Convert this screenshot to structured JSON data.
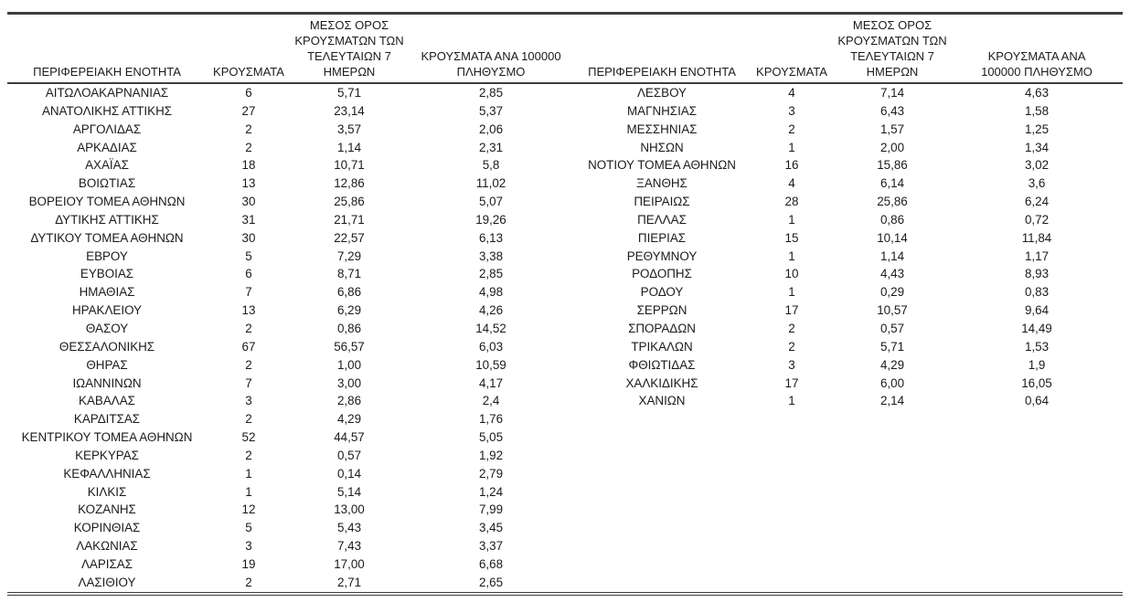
{
  "page": {
    "background": "#ffffff",
    "text_color": "#1b1b1b",
    "rule_color": "#3d3d3d"
  },
  "table": {
    "left": {
      "headers": {
        "region": "ΠΕΡΙΦΕΡΕΙΑΚΗ ΕΝΟΤΗΤΑ",
        "cases": "ΚΡΟΥΣΜΑΤΑ",
        "avg7": "ΜΕΣΟΣ ΟΡΟΣ\nΚΡΟΥΣΜΑΤΩΝ ΤΩΝ\nΤΕΛΕΥΤΑΙΩΝ 7\nΗΜΕΡΩΝ",
        "per100k": "ΚΡΟΥΣΜΑΤΑ ΑΝΑ 100000\nΠΛΗΘΥΣΜΟ"
      },
      "rows": [
        [
          "ΑΙΤΩΛΟΑΚΑΡΝΑΝΙΑΣ",
          "6",
          "5,71",
          "2,85"
        ],
        [
          "ΑΝΑΤΟΛΙΚΗΣ ΑΤΤΙΚΗΣ",
          "27",
          "23,14",
          "5,37"
        ],
        [
          "ΑΡΓΟΛΙΔΑΣ",
          "2",
          "3,57",
          "2,06"
        ],
        [
          "ΑΡΚΑΔΙΑΣ",
          "2",
          "1,14",
          "2,31"
        ],
        [
          "ΑΧΑΪΑΣ",
          "18",
          "10,71",
          "5,8"
        ],
        [
          "ΒΟΙΩΤΙΑΣ",
          "13",
          "12,86",
          "11,02"
        ],
        [
          "ΒΟΡΕΙΟΥ ΤΟΜΕΑ ΑΘΗΝΩΝ",
          "30",
          "25,86",
          "5,07"
        ],
        [
          "ΔΥΤΙΚΗΣ ΑΤΤΙΚΗΣ",
          "31",
          "21,71",
          "19,26"
        ],
        [
          "ΔΥΤΙΚΟΥ ΤΟΜΕΑ ΑΘΗΝΩΝ",
          "30",
          "22,57",
          "6,13"
        ],
        [
          "ΕΒΡΟΥ",
          "5",
          "7,29",
          "3,38"
        ],
        [
          "ΕΥΒΟΙΑΣ",
          "6",
          "8,71",
          "2,85"
        ],
        [
          "ΗΜΑΘΙΑΣ",
          "7",
          "6,86",
          "4,98"
        ],
        [
          "ΗΡΑΚΛΕΙΟΥ",
          "13",
          "6,29",
          "4,26"
        ],
        [
          "ΘΑΣΟΥ",
          "2",
          "0,86",
          "14,52"
        ],
        [
          "ΘΕΣΣΑΛΟΝΙΚΗΣ",
          "67",
          "56,57",
          "6,03"
        ],
        [
          "ΘΗΡΑΣ",
          "2",
          "1,00",
          "10,59"
        ],
        [
          "ΙΩΑΝΝΙΝΩΝ",
          "7",
          "3,00",
          "4,17"
        ],
        [
          "ΚΑΒΑΛΑΣ",
          "3",
          "2,86",
          "2,4"
        ],
        [
          "ΚΑΡΔΙΤΣΑΣ",
          "2",
          "4,29",
          "1,76"
        ],
        [
          "ΚΕΝΤΡΙΚΟΥ ΤΟΜΕΑ ΑΘΗΝΩΝ",
          "52",
          "44,57",
          "5,05"
        ],
        [
          "ΚΕΡΚΥΡΑΣ",
          "2",
          "0,57",
          "1,92"
        ],
        [
          "ΚΕΦΑΛΛΗΝΙΑΣ",
          "1",
          "0,14",
          "2,79"
        ],
        [
          "ΚΙΛΚΙΣ",
          "1",
          "5,14",
          "1,24"
        ],
        [
          "ΚΟΖΑΝΗΣ",
          "12",
          "13,00",
          "7,99"
        ],
        [
          "ΚΟΡΙΝΘΙΑΣ",
          "5",
          "5,43",
          "3,45"
        ],
        [
          "ΛΑΚΩΝΙΑΣ",
          "3",
          "7,43",
          "3,37"
        ],
        [
          "ΛΑΡΙΣΑΣ",
          "19",
          "17,00",
          "6,68"
        ],
        [
          "ΛΑΣΙΘΙΟΥ",
          "2",
          "2,71",
          "2,65"
        ]
      ]
    },
    "right": {
      "headers": {
        "region": "ΠΕΡΙΦΕΡΕΙΑΚΗ ΕΝΟΤΗΤΑ",
        "cases": "ΚΡΟΥΣΜΑΤΑ",
        "avg7": "ΜΕΣΟΣ ΟΡΟΣ\nΚΡΟΥΣΜΑΤΩΝ ΤΩΝ\nΤΕΛΕΥΤΑΙΩΝ 7\nΗΜΕΡΩΝ",
        "per100k": "ΚΡΟΥΣΜΑΤΑ ΑΝΑ\n100000 ΠΛΗΘΥΣΜΟ"
      },
      "rows": [
        [
          "ΛΕΣΒΟΥ",
          "4",
          "7,14",
          "4,63"
        ],
        [
          "ΜΑΓΝΗΣΙΑΣ",
          "3",
          "6,43",
          "1,58"
        ],
        [
          "ΜΕΣΣΗΝΙΑΣ",
          "2",
          "1,57",
          "1,25"
        ],
        [
          "ΝΗΣΩΝ",
          "1",
          "2,00",
          "1,34"
        ],
        [
          "ΝΟΤΙΟΥ ΤΟΜΕΑ ΑΘΗΝΩΝ",
          "16",
          "15,86",
          "3,02"
        ],
        [
          "ΞΑΝΘΗΣ",
          "4",
          "6,14",
          "3,6"
        ],
        [
          "ΠΕΙΡΑΙΩΣ",
          "28",
          "25,86",
          "6,24"
        ],
        [
          "ΠΕΛΛΑΣ",
          "1",
          "0,86",
          "0,72"
        ],
        [
          "ΠΙΕΡΙΑΣ",
          "15",
          "10,14",
          "11,84"
        ],
        [
          "ΡΕΘΥΜΝΟΥ",
          "1",
          "1,14",
          "1,17"
        ],
        [
          "ΡΟΔΟΠΗΣ",
          "10",
          "4,43",
          "8,93"
        ],
        [
          "ΡΟΔΟΥ",
          "1",
          "0,29",
          "0,83"
        ],
        [
          "ΣΕΡΡΩΝ",
          "17",
          "10,57",
          "9,64"
        ],
        [
          "ΣΠΟΡΑΔΩΝ",
          "2",
          "0,57",
          "14,49"
        ],
        [
          "ΤΡΙΚΑΛΩΝ",
          "2",
          "5,71",
          "1,53"
        ],
        [
          "ΦΘΙΩΤΙΔΑΣ",
          "3",
          "4,29",
          "1,9"
        ],
        [
          "ΧΑΛΚΙΔΙΚΗΣ",
          "17",
          "6,00",
          "16,05"
        ],
        [
          "ΧΑΝΙΩΝ",
          "1",
          "2,14",
          "0,64"
        ]
      ]
    }
  },
  "chart_data": {
    "type": "table",
    "title": "",
    "columns": [
      "ΠΕΡΙΦΕΡΕΙΑΚΗ ΕΝΟΤΗΤΑ",
      "ΚΡΟΥΣΜΑΤΑ",
      "ΜΕΣΟΣ ΟΡΟΣ ΚΡΟΥΣΜΑΤΩΝ ΤΩΝ ΤΕΛΕΥΤΑΙΩΝ 7 ΗΜΕΡΩΝ",
      "ΚΡΟΥΣΜΑΤΑ ΑΝΑ 100000 ΠΛΗΘΥΣΜΟ"
    ],
    "layout": "two side-by-side panels sharing one ruled frame; left panel 28 rows, right panel 18 rows",
    "rows": [
      [
        "ΑΙΤΩΛΟΑΚΑΡΝΑΝΙΑΣ",
        "6",
        "5,71",
        "2,85"
      ],
      [
        "ΑΝΑΤΟΛΙΚΗΣ ΑΤΤΙΚΗΣ",
        "27",
        "23,14",
        "5,37"
      ],
      [
        "ΑΡΓΟΛΙΔΑΣ",
        "2",
        "3,57",
        "2,06"
      ],
      [
        "ΑΡΚΑΔΙΑΣ",
        "2",
        "1,14",
        "2,31"
      ],
      [
        "ΑΧΑΪΑΣ",
        "18",
        "10,71",
        "5,8"
      ],
      [
        "ΒΟΙΩΤΙΑΣ",
        "13",
        "12,86",
        "11,02"
      ],
      [
        "ΒΟΡΕΙΟΥ ΤΟΜΕΑ ΑΘΗΝΩΝ",
        "30",
        "25,86",
        "5,07"
      ],
      [
        "ΔΥΤΙΚΗΣ ΑΤΤΙΚΗΣ",
        "31",
        "21,71",
        "19,26"
      ],
      [
        "ΔΥΤΙΚΟΥ ΤΟΜΕΑ ΑΘΗΝΩΝ",
        "30",
        "22,57",
        "6,13"
      ],
      [
        "ΕΒΡΟΥ",
        "5",
        "7,29",
        "3,38"
      ],
      [
        "ΕΥΒΟΙΑΣ",
        "6",
        "8,71",
        "2,85"
      ],
      [
        "ΗΜΑΘΙΑΣ",
        "7",
        "6,86",
        "4,98"
      ],
      [
        "ΗΡΑΚΛΕΙΟΥ",
        "13",
        "6,29",
        "4,26"
      ],
      [
        "ΘΑΣΟΥ",
        "2",
        "0,86",
        "14,52"
      ],
      [
        "ΘΕΣΣΑΛΟΝΙΚΗΣ",
        "67",
        "56,57",
        "6,03"
      ],
      [
        "ΘΗΡΑΣ",
        "2",
        "1,00",
        "10,59"
      ],
      [
        "ΙΩΑΝΝΙΝΩΝ",
        "7",
        "3,00",
        "4,17"
      ],
      [
        "ΚΑΒΑΛΑΣ",
        "3",
        "2,86",
        "2,4"
      ],
      [
        "ΚΑΡΔΙΤΣΑΣ",
        "2",
        "4,29",
        "1,76"
      ],
      [
        "ΚΕΝΤΡΙΚΟΥ ΤΟΜΕΑ ΑΘΗΝΩΝ",
        "52",
        "44,57",
        "5,05"
      ],
      [
        "ΚΕΡΚΥΡΑΣ",
        "2",
        "0,57",
        "1,92"
      ],
      [
        "ΚΕΦΑΛΛΗΝΙΑΣ",
        "1",
        "0,14",
        "2,79"
      ],
      [
        "ΚΙΛΚΙΣ",
        "1",
        "5,14",
        "1,24"
      ],
      [
        "ΚΟΖΑΝΗΣ",
        "12",
        "13,00",
        "7,99"
      ],
      [
        "ΚΟΡΙΝΘΙΑΣ",
        "5",
        "5,43",
        "3,45"
      ],
      [
        "ΛΑΚΩΝΙΑΣ",
        "3",
        "7,43",
        "3,37"
      ],
      [
        "ΛΑΡΙΣΑΣ",
        "19",
        "17,00",
        "6,68"
      ],
      [
        "ΛΑΣΙΘΙΟΥ",
        "2",
        "2,71",
        "2,65"
      ],
      [
        "ΛΕΣΒΟΥ",
        "4",
        "7,14",
        "4,63"
      ],
      [
        "ΜΑΓΝΗΣΙΑΣ",
        "3",
        "6,43",
        "1,58"
      ],
      [
        "ΜΕΣΣΗΝΙΑΣ",
        "2",
        "1,57",
        "1,25"
      ],
      [
        "ΝΗΣΩΝ",
        "1",
        "2,00",
        "1,34"
      ],
      [
        "ΝΟΤΙΟΥ ΤΟΜΕΑ ΑΘΗΝΩΝ",
        "16",
        "15,86",
        "3,02"
      ],
      [
        "ΞΑΝΘΗΣ",
        "4",
        "6,14",
        "3,6"
      ],
      [
        "ΠΕΙΡΑΙΩΣ",
        "28",
        "25,86",
        "6,24"
      ],
      [
        "ΠΕΛΛΑΣ",
        "1",
        "0,86",
        "0,72"
      ],
      [
        "ΠΙΕΡΙΑΣ",
        "15",
        "10,14",
        "11,84"
      ],
      [
        "ΡΕΘΥΜΝΟΥ",
        "1",
        "1,14",
        "1,17"
      ],
      [
        "ΡΟΔΟΠΗΣ",
        "10",
        "4,43",
        "8,93"
      ],
      [
        "ΡΟΔΟΥ",
        "1",
        "0,29",
        "0,83"
      ],
      [
        "ΣΕΡΡΩΝ",
        "17",
        "10,57",
        "9,64"
      ],
      [
        "ΣΠΟΡΑΔΩΝ",
        "2",
        "0,57",
        "14,49"
      ],
      [
        "ΤΡΙΚΑΛΩΝ",
        "2",
        "5,71",
        "1,53"
      ],
      [
        "ΦΘΙΩΤΙΔΑΣ",
        "3",
        "4,29",
        "1,9"
      ],
      [
        "ΧΑΛΚΙΔΙΚΗΣ",
        "17",
        "6,00",
        "16,05"
      ],
      [
        "ΧΑΝΙΩΝ",
        "1",
        "2,14",
        "0,64"
      ]
    ]
  }
}
